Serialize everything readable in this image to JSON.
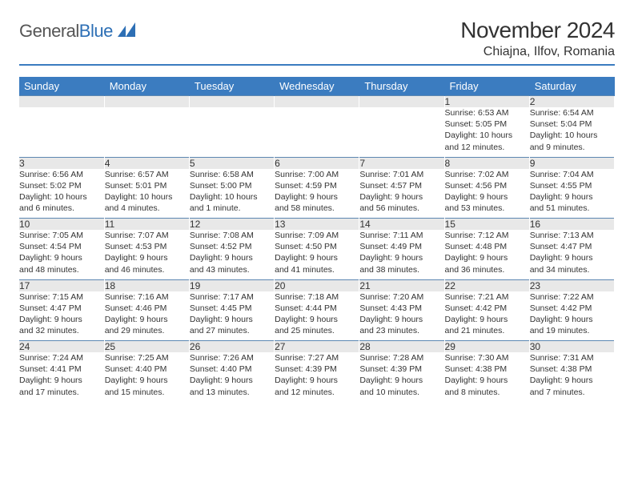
{
  "brand": {
    "part1": "General",
    "part2": "Blue"
  },
  "title": "November 2024",
  "location": "Chiajna, Ilfov, Romania",
  "colors": {
    "header_bar": "#3b7cc0",
    "daynum_bg": "#e8e8e8",
    "row_divider": "#5c87b2",
    "text": "#333333",
    "brand_gray": "#555555",
    "brand_blue": "#2d6fb5"
  },
  "days_of_week": [
    "Sunday",
    "Monday",
    "Tuesday",
    "Wednesday",
    "Thursday",
    "Friday",
    "Saturday"
  ],
  "weeks": [
    {
      "nums": [
        "",
        "",
        "",
        "",
        "",
        "1",
        "2"
      ],
      "cells": [
        null,
        null,
        null,
        null,
        null,
        {
          "sunrise": "Sunrise: 6:53 AM",
          "sunset": "Sunset: 5:05 PM",
          "day1": "Daylight: 10 hours",
          "day2": "and 12 minutes."
        },
        {
          "sunrise": "Sunrise: 6:54 AM",
          "sunset": "Sunset: 5:04 PM",
          "day1": "Daylight: 10 hours",
          "day2": "and 9 minutes."
        }
      ]
    },
    {
      "nums": [
        "3",
        "4",
        "5",
        "6",
        "7",
        "8",
        "9"
      ],
      "cells": [
        {
          "sunrise": "Sunrise: 6:56 AM",
          "sunset": "Sunset: 5:02 PM",
          "day1": "Daylight: 10 hours",
          "day2": "and 6 minutes."
        },
        {
          "sunrise": "Sunrise: 6:57 AM",
          "sunset": "Sunset: 5:01 PM",
          "day1": "Daylight: 10 hours",
          "day2": "and 4 minutes."
        },
        {
          "sunrise": "Sunrise: 6:58 AM",
          "sunset": "Sunset: 5:00 PM",
          "day1": "Daylight: 10 hours",
          "day2": "and 1 minute."
        },
        {
          "sunrise": "Sunrise: 7:00 AM",
          "sunset": "Sunset: 4:59 PM",
          "day1": "Daylight: 9 hours",
          "day2": "and 58 minutes."
        },
        {
          "sunrise": "Sunrise: 7:01 AM",
          "sunset": "Sunset: 4:57 PM",
          "day1": "Daylight: 9 hours",
          "day2": "and 56 minutes."
        },
        {
          "sunrise": "Sunrise: 7:02 AM",
          "sunset": "Sunset: 4:56 PM",
          "day1": "Daylight: 9 hours",
          "day2": "and 53 minutes."
        },
        {
          "sunrise": "Sunrise: 7:04 AM",
          "sunset": "Sunset: 4:55 PM",
          "day1": "Daylight: 9 hours",
          "day2": "and 51 minutes."
        }
      ]
    },
    {
      "nums": [
        "10",
        "11",
        "12",
        "13",
        "14",
        "15",
        "16"
      ],
      "cells": [
        {
          "sunrise": "Sunrise: 7:05 AM",
          "sunset": "Sunset: 4:54 PM",
          "day1": "Daylight: 9 hours",
          "day2": "and 48 minutes."
        },
        {
          "sunrise": "Sunrise: 7:07 AM",
          "sunset": "Sunset: 4:53 PM",
          "day1": "Daylight: 9 hours",
          "day2": "and 46 minutes."
        },
        {
          "sunrise": "Sunrise: 7:08 AM",
          "sunset": "Sunset: 4:52 PM",
          "day1": "Daylight: 9 hours",
          "day2": "and 43 minutes."
        },
        {
          "sunrise": "Sunrise: 7:09 AM",
          "sunset": "Sunset: 4:50 PM",
          "day1": "Daylight: 9 hours",
          "day2": "and 41 minutes."
        },
        {
          "sunrise": "Sunrise: 7:11 AM",
          "sunset": "Sunset: 4:49 PM",
          "day1": "Daylight: 9 hours",
          "day2": "and 38 minutes."
        },
        {
          "sunrise": "Sunrise: 7:12 AM",
          "sunset": "Sunset: 4:48 PM",
          "day1": "Daylight: 9 hours",
          "day2": "and 36 minutes."
        },
        {
          "sunrise": "Sunrise: 7:13 AM",
          "sunset": "Sunset: 4:47 PM",
          "day1": "Daylight: 9 hours",
          "day2": "and 34 minutes."
        }
      ]
    },
    {
      "nums": [
        "17",
        "18",
        "19",
        "20",
        "21",
        "22",
        "23"
      ],
      "cells": [
        {
          "sunrise": "Sunrise: 7:15 AM",
          "sunset": "Sunset: 4:47 PM",
          "day1": "Daylight: 9 hours",
          "day2": "and 32 minutes."
        },
        {
          "sunrise": "Sunrise: 7:16 AM",
          "sunset": "Sunset: 4:46 PM",
          "day1": "Daylight: 9 hours",
          "day2": "and 29 minutes."
        },
        {
          "sunrise": "Sunrise: 7:17 AM",
          "sunset": "Sunset: 4:45 PM",
          "day1": "Daylight: 9 hours",
          "day2": "and 27 minutes."
        },
        {
          "sunrise": "Sunrise: 7:18 AM",
          "sunset": "Sunset: 4:44 PM",
          "day1": "Daylight: 9 hours",
          "day2": "and 25 minutes."
        },
        {
          "sunrise": "Sunrise: 7:20 AM",
          "sunset": "Sunset: 4:43 PM",
          "day1": "Daylight: 9 hours",
          "day2": "and 23 minutes."
        },
        {
          "sunrise": "Sunrise: 7:21 AM",
          "sunset": "Sunset: 4:42 PM",
          "day1": "Daylight: 9 hours",
          "day2": "and 21 minutes."
        },
        {
          "sunrise": "Sunrise: 7:22 AM",
          "sunset": "Sunset: 4:42 PM",
          "day1": "Daylight: 9 hours",
          "day2": "and 19 minutes."
        }
      ]
    },
    {
      "nums": [
        "24",
        "25",
        "26",
        "27",
        "28",
        "29",
        "30"
      ],
      "cells": [
        {
          "sunrise": "Sunrise: 7:24 AM",
          "sunset": "Sunset: 4:41 PM",
          "day1": "Daylight: 9 hours",
          "day2": "and 17 minutes."
        },
        {
          "sunrise": "Sunrise: 7:25 AM",
          "sunset": "Sunset: 4:40 PM",
          "day1": "Daylight: 9 hours",
          "day2": "and 15 minutes."
        },
        {
          "sunrise": "Sunrise: 7:26 AM",
          "sunset": "Sunset: 4:40 PM",
          "day1": "Daylight: 9 hours",
          "day2": "and 13 minutes."
        },
        {
          "sunrise": "Sunrise: 7:27 AM",
          "sunset": "Sunset: 4:39 PM",
          "day1": "Daylight: 9 hours",
          "day2": "and 12 minutes."
        },
        {
          "sunrise": "Sunrise: 7:28 AM",
          "sunset": "Sunset: 4:39 PM",
          "day1": "Daylight: 9 hours",
          "day2": "and 10 minutes."
        },
        {
          "sunrise": "Sunrise: 7:30 AM",
          "sunset": "Sunset: 4:38 PM",
          "day1": "Daylight: 9 hours",
          "day2": "and 8 minutes."
        },
        {
          "sunrise": "Sunrise: 7:31 AM",
          "sunset": "Sunset: 4:38 PM",
          "day1": "Daylight: 9 hours",
          "day2": "and 7 minutes."
        }
      ]
    }
  ]
}
